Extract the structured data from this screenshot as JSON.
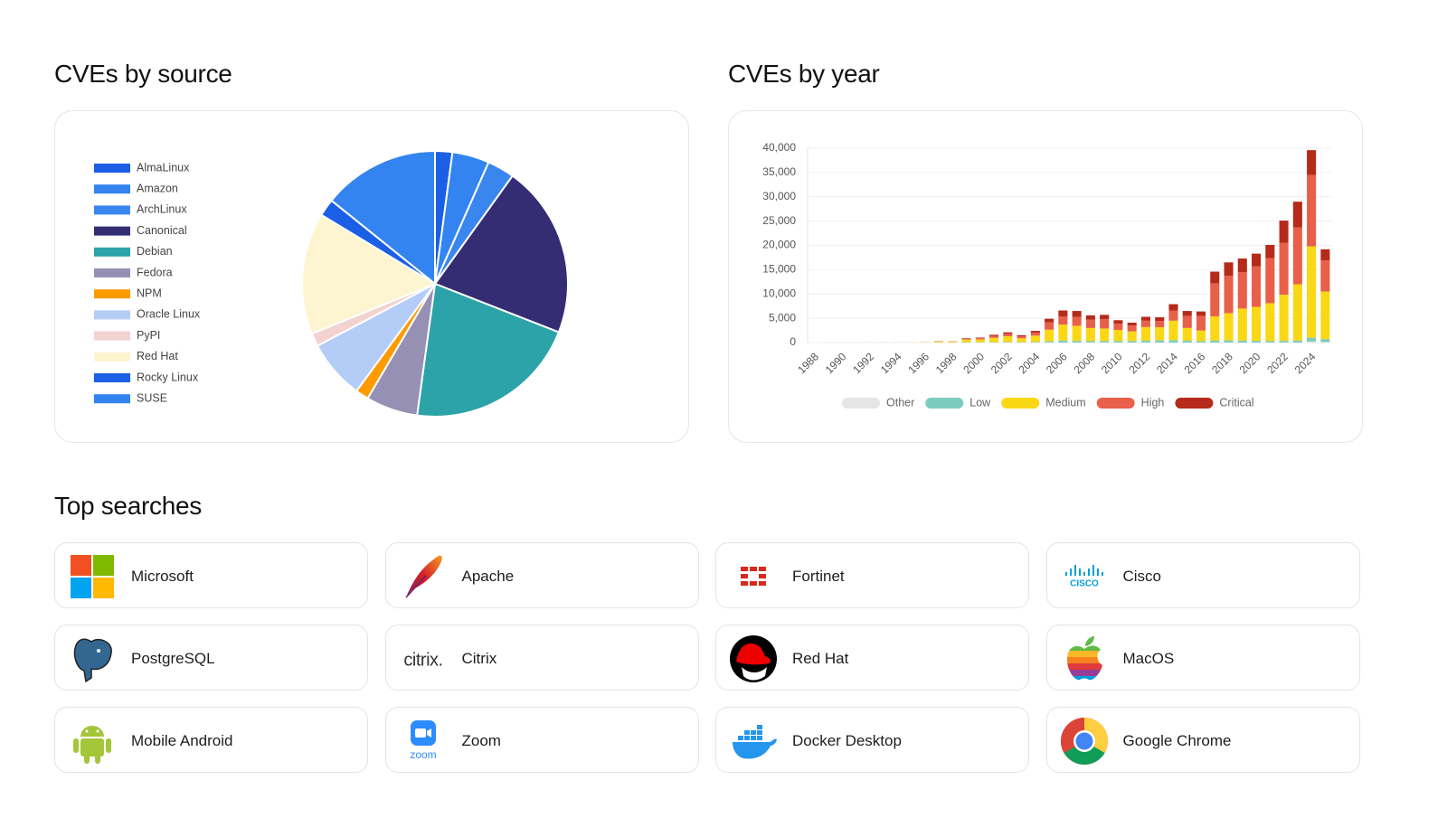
{
  "chart_data": [
    {
      "type": "pie",
      "title": "CVEs by source",
      "categories": [
        "AlmaLinux",
        "Amazon",
        "ArchLinux",
        "Canonical",
        "Debian",
        "Fedora",
        "NPM",
        "Oracle Linux",
        "PyPI",
        "Red Hat",
        "Rocky Linux",
        "SUSE"
      ],
      "values": [
        2.1,
        4.5,
        3.3,
        21,
        21.2,
        6.3,
        1.6,
        7.2,
        1.6,
        14.8,
        2.1,
        14.2
      ],
      "colors": [
        "#1a5fe6",
        "#3384f0",
        "#3a86ef",
        "#352d74",
        "#2ca3a8",
        "#9690b5",
        "#ff9a00",
        "#b3cdf7",
        "#f2d3d0",
        "#fdf5d0",
        "#1a5fe6",
        "#3384f0"
      ],
      "legend": "left"
    },
    {
      "type": "bar",
      "title": "CVEs by year",
      "stacked": true,
      "categories": [
        "1988",
        null,
        "1990",
        null,
        "1992",
        null,
        "1994",
        null,
        "1996",
        null,
        "1998",
        null,
        "2000",
        null,
        "2002",
        null,
        "2004",
        null,
        "2006",
        null,
        "2008",
        null,
        "2010",
        null,
        "2012",
        null,
        "2014",
        null,
        "2016",
        null,
        "2018",
        null,
        "2020",
        null,
        "2022",
        null,
        "2024",
        null
      ],
      "series": [
        {
          "name": "Other",
          "color": "#e6e6e6",
          "values": [
            0,
            0,
            0,
            0,
            0,
            0,
            0,
            0,
            0,
            0,
            0,
            0,
            0,
            0,
            0,
            0,
            0,
            0,
            0,
            0,
            0,
            0,
            0,
            0,
            0,
            0,
            0,
            0,
            0,
            0,
            0,
            0,
            0,
            0,
            0,
            0,
            200,
            100
          ]
        },
        {
          "name": "Low",
          "color": "#7ccbbf",
          "values": [
            1,
            1,
            2,
            3,
            4,
            5,
            4,
            3,
            10,
            20,
            25,
            80,
            60,
            80,
            100,
            80,
            120,
            250,
            400,
            350,
            300,
            300,
            300,
            300,
            400,
            450,
            500,
            400,
            300,
            400,
            450,
            400,
            350,
            300,
            350,
            400,
            800,
            600
          ]
        },
        {
          "name": "Medium",
          "color": "#fad816",
          "values": [
            2,
            2,
            5,
            10,
            8,
            15,
            12,
            10,
            40,
            150,
            150,
            550,
            600,
            900,
            1200,
            800,
            1300,
            2400,
            3300,
            3100,
            2700,
            2600,
            2300,
            2000,
            2800,
            2700,
            4000,
            2600,
            2200,
            5000,
            5600,
            6600,
            7000,
            7800,
            9500,
            11600,
            18800,
            9800
          ]
        },
        {
          "name": "High",
          "color": "#e8604a",
          "values": [
            0,
            1,
            2,
            3,
            4,
            5,
            6,
            10,
            20,
            80,
            50,
            150,
            250,
            400,
            500,
            400,
            600,
            1500,
            1700,
            1800,
            1700,
            1900,
            1300,
            1200,
            1300,
            1300,
            2100,
            2500,
            3000,
            6800,
            7700,
            7500,
            8300,
            9300,
            10700,
            11700,
            14700,
            6400
          ]
        },
        {
          "name": "Critical",
          "color": "#b52a1a",
          "values": [
            0,
            0,
            1,
            1,
            2,
            3,
            3,
            2,
            5,
            20,
            20,
            120,
            110,
            220,
            300,
            220,
            380,
            750,
            1200,
            1250,
            900,
            900,
            700,
            600,
            800,
            750,
            1300,
            1000,
            900,
            2400,
            2750,
            2800,
            2650,
            2700,
            4550,
            5300,
            5100,
            2300
          ]
        }
      ],
      "ylim": [
        0,
        40000
      ],
      "yticks": [
        0,
        {
          "value": 5000,
          "label": "5,000"
        },
        {
          "value": 10000,
          "label": "10,000"
        },
        {
          "value": 15000,
          "label": "15,000"
        },
        {
          "value": 20000,
          "label": "20,000"
        },
        {
          "value": 25000,
          "label": "25,000"
        },
        {
          "value": 30000,
          "label": "30,000"
        },
        {
          "value": 35000,
          "label": "35,000"
        },
        {
          "value": 40000,
          "label": "40,000"
        }
      ],
      "grid": true,
      "legend": "bottom"
    }
  ],
  "top_searches": {
    "title": "Top searches",
    "items": [
      {
        "name": "Microsoft"
      },
      {
        "name": "Apache"
      },
      {
        "name": "Fortinet"
      },
      {
        "name": "Cisco",
        "logo_text": "CISCO"
      },
      {
        "name": "PostgreSQL"
      },
      {
        "name": "Citrix",
        "logo_text": "citrix."
      },
      {
        "name": "Red Hat"
      },
      {
        "name": "MacOS"
      },
      {
        "name": "Mobile Android"
      },
      {
        "name": "Zoom",
        "logo_text": "zoom"
      },
      {
        "name": "Docker Desktop"
      },
      {
        "name": "Google Chrome"
      }
    ]
  }
}
